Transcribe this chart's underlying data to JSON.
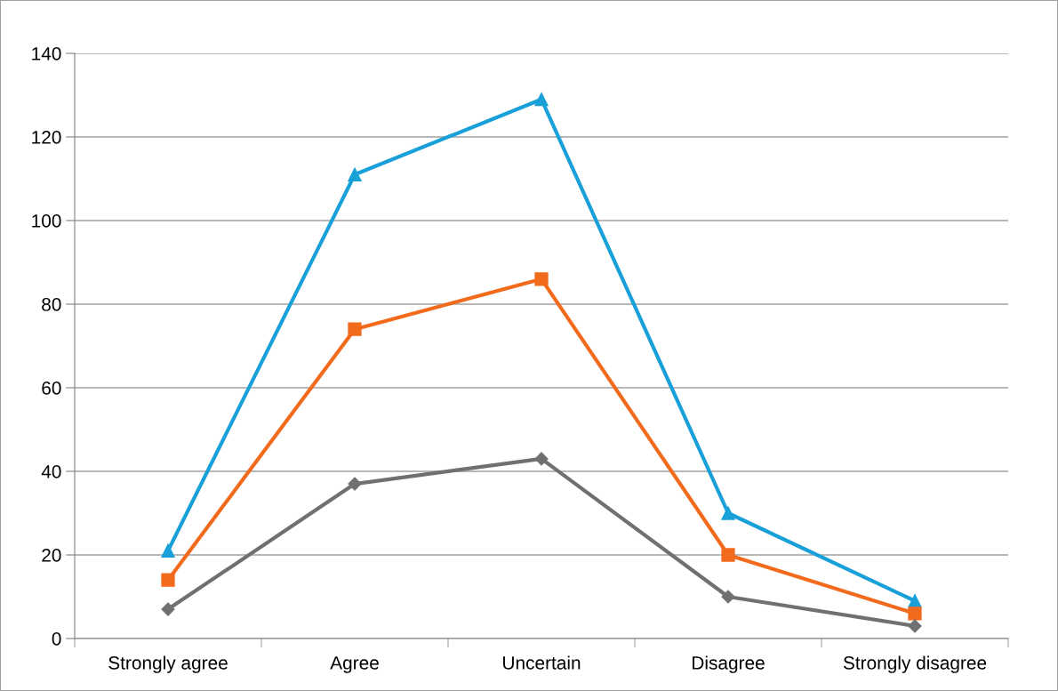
{
  "chart_data": {
    "type": "line",
    "categories": [
      "Strongly agree",
      "Agree",
      "Uncertain",
      "Disagree",
      "Strongly disagree"
    ],
    "series": [
      {
        "color": "#1aa0d8",
        "marker": "triangle",
        "values": [
          21,
          111,
          129,
          30,
          9
        ]
      },
      {
        "color": "#f26b1d",
        "marker": "square",
        "values": [
          14,
          74,
          86,
          20,
          6
        ]
      },
      {
        "color": "#707070",
        "marker": "diamond",
        "values": [
          7,
          37,
          43,
          10,
          3
        ]
      }
    ],
    "ylim": [
      0,
      140
    ],
    "yticks": [
      0,
      20,
      40,
      60,
      80,
      100,
      120,
      140
    ],
    "grid": "y",
    "legend": false,
    "line_style": "solid"
  }
}
